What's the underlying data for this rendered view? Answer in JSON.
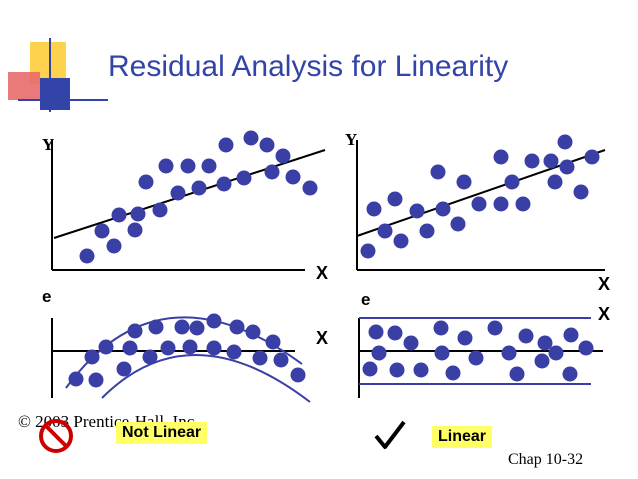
{
  "slide": {
    "title": "Residual Analysis for Linearity",
    "copyright": "© 2003 Prentice-Hall, Inc.",
    "page": "Chap 10-32"
  },
  "left_panel": {
    "y_label": "Y",
    "x_label": "X",
    "resid_label": "e",
    "resid_x_label": "X",
    "verdict": "Not Linear",
    "verdict_icon": "no-symbol-icon"
  },
  "right_panel": {
    "y_label": "Y",
    "x_label": "X",
    "resid_label": "e",
    "resid_x_label": "X",
    "verdict": "Linear",
    "verdict_icon": "check-mark-icon"
  },
  "colors": {
    "title": "#3344a8",
    "dots": "#3a3fa6",
    "guide_lines": "#3a3fa6",
    "label_bg": "#ffff66",
    "no_symbol": "#cc0000"
  }
}
